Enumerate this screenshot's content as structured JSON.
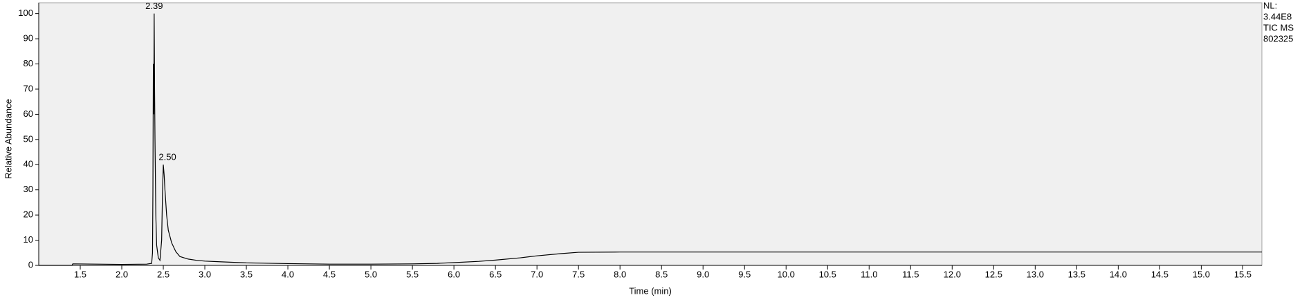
{
  "chart_data": {
    "type": "line",
    "xlabel": "Time (min)",
    "ylabel": "Relative Abundance",
    "info": [
      "NL:",
      "3.44E8",
      "TIC  MS",
      "802325"
    ],
    "color": "#000000",
    "x": [
      1.0,
      1.4,
      1.41,
      1.7,
      2.0,
      2.3,
      2.36,
      2.37,
      2.375,
      2.38,
      2.385,
      2.39,
      2.395,
      2.4,
      2.41,
      2.42,
      2.44,
      2.46,
      2.48,
      2.49,
      2.5,
      2.51,
      2.52,
      2.54,
      2.56,
      2.6,
      2.65,
      2.7,
      2.8,
      2.9,
      3.0,
      3.2,
      3.5,
      4.0,
      4.5,
      5.0,
      5.5,
      5.8,
      6.0,
      6.3,
      6.5,
      6.8,
      7.0,
      7.3,
      7.5,
      8.0,
      9.0,
      10.0,
      11.0,
      12.0,
      13.0,
      14.0,
      15.0,
      15.73
    ],
    "values": [
      0,
      0,
      0.6,
      0.5,
      0.4,
      0.5,
      0.8,
      5,
      30,
      80,
      60,
      100,
      70,
      50,
      20,
      8,
      3,
      2,
      10,
      28,
      40,
      36,
      30,
      20,
      14,
      9,
      5.5,
      3.5,
      2.5,
      2,
      1.7,
      1.4,
      1,
      0.7,
      0.5,
      0.5,
      0.6,
      0.8,
      1.1,
      1.6,
      2.1,
      3.0,
      3.8,
      4.7,
      5.2,
      5.3,
      5.3,
      5.3,
      5.3,
      5.3,
      5.3,
      5.3,
      5.3,
      5.3
    ],
    "annotations": [
      {
        "label": "2.39",
        "x": 2.39,
        "y": 100
      },
      {
        "label": "2.50",
        "x": 2.5,
        "y": 40
      }
    ],
    "xlim": [
      1.0,
      15.73
    ],
    "ylim": [
      0,
      104.3
    ],
    "xticks": [
      {
        "value": 1.5,
        "label": "1.5"
      },
      {
        "value": 2,
        "label": "2.0"
      },
      {
        "value": 2.5,
        "label": "2.5"
      },
      {
        "value": 3,
        "label": "3.0"
      },
      {
        "value": 3.5,
        "label": "3.5"
      },
      {
        "value": 4,
        "label": "4.0"
      },
      {
        "value": 4.5,
        "label": "4.5"
      },
      {
        "value": 5,
        "label": "5.0"
      },
      {
        "value": 5.5,
        "label": "5.5"
      },
      {
        "value": 6,
        "label": "6.0"
      },
      {
        "value": 6.5,
        "label": "6.5"
      },
      {
        "value": 7,
        "label": "7.0"
      },
      {
        "value": 7.5,
        "label": "7.5"
      },
      {
        "value": 8,
        "label": "8.0"
      },
      {
        "value": 8.5,
        "label": "8.5"
      },
      {
        "value": 9,
        "label": "9.0"
      },
      {
        "value": 9.5,
        "label": "9.5"
      },
      {
        "value": 10,
        "label": "10.0"
      },
      {
        "value": 10.5,
        "label": "10.5"
      },
      {
        "value": 11,
        "label": "11.0"
      },
      {
        "value": 11.5,
        "label": "11.5"
      },
      {
        "value": 12,
        "label": "12.0"
      },
      {
        "value": 12.5,
        "label": "12.5"
      },
      {
        "value": 13,
        "label": "13.0"
      },
      {
        "value": 13.5,
        "label": "13.5"
      },
      {
        "value": 14,
        "label": "14.0"
      },
      {
        "value": 14.5,
        "label": "14.5"
      },
      {
        "value": 15,
        "label": "15.0"
      },
      {
        "value": 15.5,
        "label": "15.5"
      }
    ],
    "yticks": [
      0,
      10,
      20,
      30,
      40,
      50,
      60,
      70,
      80,
      90,
      100
    ],
    "grid": false
  }
}
